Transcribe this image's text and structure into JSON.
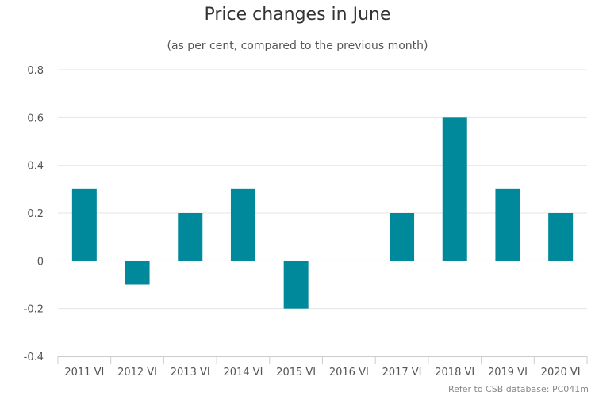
{
  "chart_data": {
    "type": "bar",
    "title": "Price changes in June",
    "subtitle": "(as per cent, compared to the previous month)",
    "categories": [
      "2011 VI",
      "2012 VI",
      "2013 VI",
      "2014 VI",
      "2015 VI",
      "2016 VI",
      "2017 VI",
      "2018 VI",
      "2019 VI",
      "2020 VI"
    ],
    "values": [
      0.3,
      -0.1,
      0.2,
      0.3,
      -0.2,
      0,
      0.2,
      0.6,
      0.3,
      0.2
    ],
    "yticks": [
      "0.8",
      "0.6",
      "0.4",
      "0.2",
      "0",
      "-0.2",
      "-0.4"
    ],
    "ylim": [
      -0.4,
      0.8
    ],
    "xlabel": "",
    "ylabel": "",
    "grid": true,
    "bar_color": "#00899b"
  },
  "credit": "Refer to CSB database: PC041m"
}
